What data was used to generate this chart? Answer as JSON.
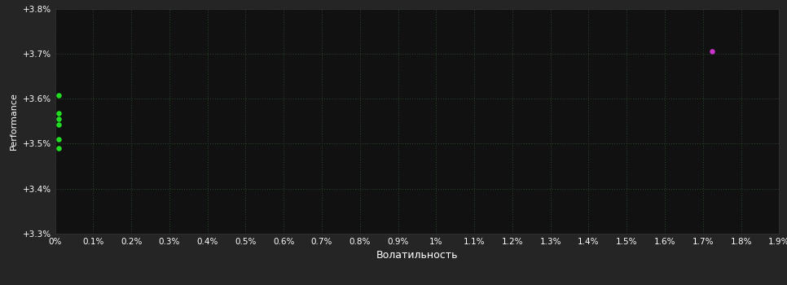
{
  "background_color": "#252525",
  "plot_bg_color": "#111111",
  "grid_color": "#2d4a2d",
  "text_color": "#ffffff",
  "xlabel": "Волатильность",
  "ylabel": "Performance",
  "xlim": [
    0.0,
    0.019
  ],
  "ylim": [
    0.033,
    0.038
  ],
  "yticks": [
    0.033,
    0.034,
    0.035,
    0.036,
    0.037,
    0.038
  ],
  "ytick_labels": [
    "+3.3%",
    "+3.4%",
    "+3.5%",
    "+3.6%",
    "+3.7%",
    "+3.8%"
  ],
  "xticks": [
    0.0,
    0.001,
    0.002,
    0.003,
    0.004,
    0.005,
    0.006,
    0.007,
    0.008,
    0.009,
    0.01,
    0.011,
    0.012,
    0.013,
    0.014,
    0.015,
    0.016,
    0.017,
    0.018,
    0.019
  ],
  "xtick_labels": [
    "0%",
    "0.1%",
    "0.2%",
    "0.3%",
    "0.4%",
    "0.5%",
    "0.6%",
    "0.7%",
    "0.8%",
    "0.9%",
    "1%",
    "1.1%",
    "1.2%",
    "1.3%",
    "1.4%",
    "1.5%",
    "1.6%",
    "1.7%",
    "1.8%",
    "1.9%"
  ],
  "green_points_xy": [
    [
      0.0001,
      0.03608
    ],
    [
      0.0001,
      0.03568
    ],
    [
      0.0001,
      0.03555
    ],
    [
      0.0001,
      0.03542
    ],
    [
      0.0001,
      0.0351
    ],
    [
      0.0001,
      0.0349
    ]
  ],
  "magenta_point": [
    0.01725,
    0.03705
  ],
  "point_size": 22,
  "green_color": "#22dd22",
  "magenta_color": "#cc33cc"
}
